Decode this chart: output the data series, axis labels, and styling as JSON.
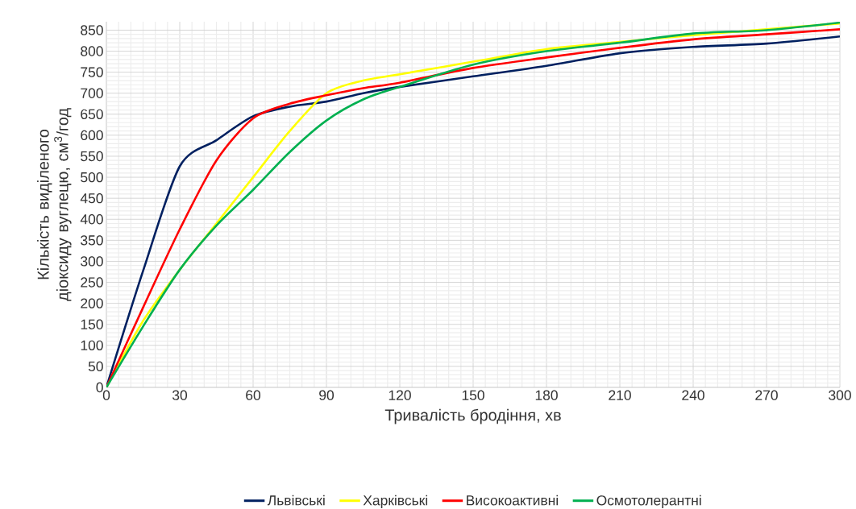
{
  "chart_data": {
    "type": "line",
    "xlabel": "Тривалість бродіння, хв",
    "ylabel": "Кількість виділеного діоксиду вуглецю, см$^{3}$/год",
    "x": [
      0,
      15,
      30,
      45,
      60,
      75,
      90,
      105,
      120,
      150,
      180,
      210,
      240,
      270,
      300
    ],
    "series": [
      {
        "name": "Львівські",
        "color": "#002060",
        "values": [
          0,
          277,
          526,
          588,
          645,
          668,
          680,
          700,
          715,
          740,
          765,
          795,
          810,
          818,
          835
        ]
      },
      {
        "name": "Харківські",
        "color": "#ffff00",
        "values": [
          0,
          158,
          280,
          390,
          500,
          610,
          700,
          730,
          745,
          775,
          805,
          822,
          838,
          852,
          866
        ]
      },
      {
        "name": "Високоактивні",
        "color": "#ff0000",
        "values": [
          0,
          190,
          376,
          540,
          640,
          675,
          695,
          712,
          725,
          760,
          785,
          808,
          828,
          840,
          852
        ]
      },
      {
        "name": "Осмотолерантні",
        "color": "#00b050",
        "values": [
          0,
          145,
          280,
          385,
          470,
          560,
          635,
          685,
          715,
          768,
          800,
          820,
          842,
          850,
          868
        ]
      }
    ],
    "xlim": [
      0,
      300
    ],
    "ylim": [
      0,
      870
    ],
    "xticks": [
      0,
      30,
      60,
      90,
      120,
      150,
      180,
      210,
      240,
      270,
      300
    ],
    "yticks": [
      0,
      50,
      100,
      150,
      200,
      250,
      300,
      350,
      400,
      450,
      500,
      550,
      600,
      650,
      700,
      750,
      800,
      850
    ],
    "grid": true,
    "legend": "bottom",
    "marker": "none",
    "line_style": "solid"
  }
}
